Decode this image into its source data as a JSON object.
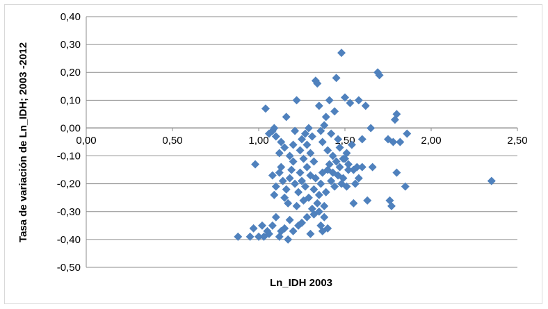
{
  "chart_data": {
    "type": "scatter",
    "xlabel": "Ln_IDH 2003",
    "ylabel": "Tasa de variación de Ln_IDH; 2003 -2012",
    "xlim": [
      0,
      2.5
    ],
    "ylim": [
      -0.5,
      0.4
    ],
    "x_ticks": [
      "0,00",
      "0,50",
      "1,00",
      "1,50",
      "2,00",
      "2,50"
    ],
    "y_ticks": [
      "0,40",
      "0,30",
      "0,20",
      "0,10",
      "0,00",
      "-0,10",
      "-0,20",
      "-0,30",
      "-0,40",
      "-0,50"
    ],
    "grid": "horizontal",
    "marker": "diamond",
    "series_color": "#4f81bd",
    "points": [
      [
        0.88,
        -0.39
      ],
      [
        0.95,
        -0.39
      ],
      [
        0.97,
        -0.36
      ],
      [
        1.0,
        -0.39
      ],
      [
        1.02,
        -0.35
      ],
      [
        1.03,
        -0.39
      ],
      [
        1.05,
        -0.37
      ],
      [
        1.06,
        -0.38
      ],
      [
        1.08,
        -0.35
      ],
      [
        1.1,
        -0.32
      ],
      [
        1.12,
        -0.39
      ],
      [
        1.13,
        -0.37
      ],
      [
        1.15,
        -0.36
      ],
      [
        1.17,
        -0.4
      ],
      [
        1.18,
        -0.33
      ],
      [
        1.2,
        -0.37
      ],
      [
        1.23,
        -0.35
      ],
      [
        1.25,
        -0.34
      ],
      [
        1.28,
        -0.32
      ],
      [
        1.3,
        -0.38
      ],
      [
        1.32,
        -0.31
      ],
      [
        1.35,
        -0.3
      ],
      [
        1.36,
        -0.35
      ],
      [
        1.37,
        -0.37
      ],
      [
        1.38,
        -0.32
      ],
      [
        1.4,
        -0.36
      ],
      [
        0.98,
        -0.13
      ],
      [
        1.04,
        0.07
      ],
      [
        1.06,
        -0.02
      ],
      [
        1.08,
        -0.01
      ],
      [
        1.09,
        0.0
      ],
      [
        1.1,
        -0.03
      ],
      [
        1.08,
        -0.17
      ],
      [
        1.09,
        -0.24
      ],
      [
        1.1,
        -0.21
      ],
      [
        1.12,
        -0.16
      ],
      [
        1.13,
        -0.14
      ],
      [
        1.14,
        -0.19
      ],
      [
        1.15,
        -0.25
      ],
      [
        1.16,
        -0.22
      ],
      [
        1.17,
        -0.27
      ],
      [
        1.18,
        -0.18
      ],
      [
        1.19,
        -0.15
      ],
      [
        1.2,
        -0.12
      ],
      [
        1.21,
        -0.2
      ],
      [
        1.22,
        -0.28
      ],
      [
        1.23,
        -0.23
      ],
      [
        1.24,
        -0.16
      ],
      [
        1.25,
        -0.19
      ],
      [
        1.26,
        -0.26
      ],
      [
        1.27,
        -0.21
      ],
      [
        1.28,
        -0.14
      ],
      [
        1.29,
        -0.25
      ],
      [
        1.3,
        -0.17
      ],
      [
        1.31,
        -0.29
      ],
      [
        1.32,
        -0.22
      ],
      [
        1.33,
        -0.18
      ],
      [
        1.34,
        -0.27
      ],
      [
        1.35,
        -0.24
      ],
      [
        1.36,
        -0.2
      ],
      [
        1.37,
        -0.16
      ],
      [
        1.38,
        -0.28
      ],
      [
        1.39,
        -0.23
      ],
      [
        1.4,
        -0.15
      ],
      [
        1.12,
        -0.09
      ],
      [
        1.13,
        -0.05
      ],
      [
        1.15,
        -0.07
      ],
      [
        1.16,
        0.04
      ],
      [
        1.18,
        -0.1
      ],
      [
        1.2,
        -0.06
      ],
      [
        1.21,
        -0.01
      ],
      [
        1.22,
        0.1
      ],
      [
        1.24,
        -0.08
      ],
      [
        1.25,
        -0.04
      ],
      [
        1.26,
        -0.11
      ],
      [
        1.27,
        -0.02
      ],
      [
        1.28,
        -0.06
      ],
      [
        1.29,
        0.0
      ],
      [
        1.3,
        -0.09
      ],
      [
        1.31,
        -0.03
      ],
      [
        1.32,
        -0.12
      ],
      [
        1.33,
        0.17
      ],
      [
        1.34,
        0.16
      ],
      [
        1.35,
        0.08
      ],
      [
        1.36,
        -0.01
      ],
      [
        1.37,
        -0.05
      ],
      [
        1.38,
        0.01
      ],
      [
        1.39,
        0.04
      ],
      [
        1.4,
        -0.08
      ],
      [
        1.41,
        0.1
      ],
      [
        1.42,
        -0.02
      ],
      [
        1.43,
        -0.1
      ],
      [
        1.44,
        0.06
      ],
      [
        1.45,
        0.18
      ],
      [
        1.46,
        -0.04
      ],
      [
        1.47,
        -0.07
      ],
      [
        1.48,
        0.27
      ],
      [
        1.49,
        -0.11
      ],
      [
        1.5,
        0.11
      ],
      [
        1.51,
        -0.09
      ],
      [
        1.52,
        -0.13
      ],
      [
        1.53,
        0.09
      ],
      [
        1.54,
        -0.06
      ],
      [
        1.55,
        -0.15
      ],
      [
        1.41,
        -0.13
      ],
      [
        1.42,
        -0.19
      ],
      [
        1.43,
        -0.16
      ],
      [
        1.44,
        -0.21
      ],
      [
        1.45,
        -0.12
      ],
      [
        1.46,
        -0.17
      ],
      [
        1.47,
        -0.14
      ],
      [
        1.48,
        -0.2
      ],
      [
        1.49,
        -0.18
      ],
      [
        1.5,
        -0.11
      ],
      [
        1.51,
        -0.21
      ],
      [
        1.52,
        -0.15
      ],
      [
        1.55,
        -0.27
      ],
      [
        1.56,
        -0.2
      ],
      [
        1.57,
        -0.14
      ],
      [
        1.58,
        -0.18
      ],
      [
        1.58,
        0.1
      ],
      [
        1.6,
        -0.04
      ],
      [
        1.6,
        -0.14
      ],
      [
        1.62,
        0.08
      ],
      [
        1.63,
        -0.26
      ],
      [
        1.65,
        0.0
      ],
      [
        1.66,
        -0.14
      ],
      [
        1.69,
        0.2
      ],
      [
        1.7,
        0.19
      ],
      [
        1.75,
        -0.04
      ],
      [
        1.76,
        -0.26
      ],
      [
        1.77,
        -0.28
      ],
      [
        1.78,
        -0.05
      ],
      [
        1.79,
        0.03
      ],
      [
        1.8,
        0.05
      ],
      [
        1.8,
        -0.16
      ],
      [
        1.82,
        -0.05
      ],
      [
        1.85,
        -0.21
      ],
      [
        1.86,
        -0.02
      ],
      [
        2.35,
        -0.19
      ]
    ]
  }
}
